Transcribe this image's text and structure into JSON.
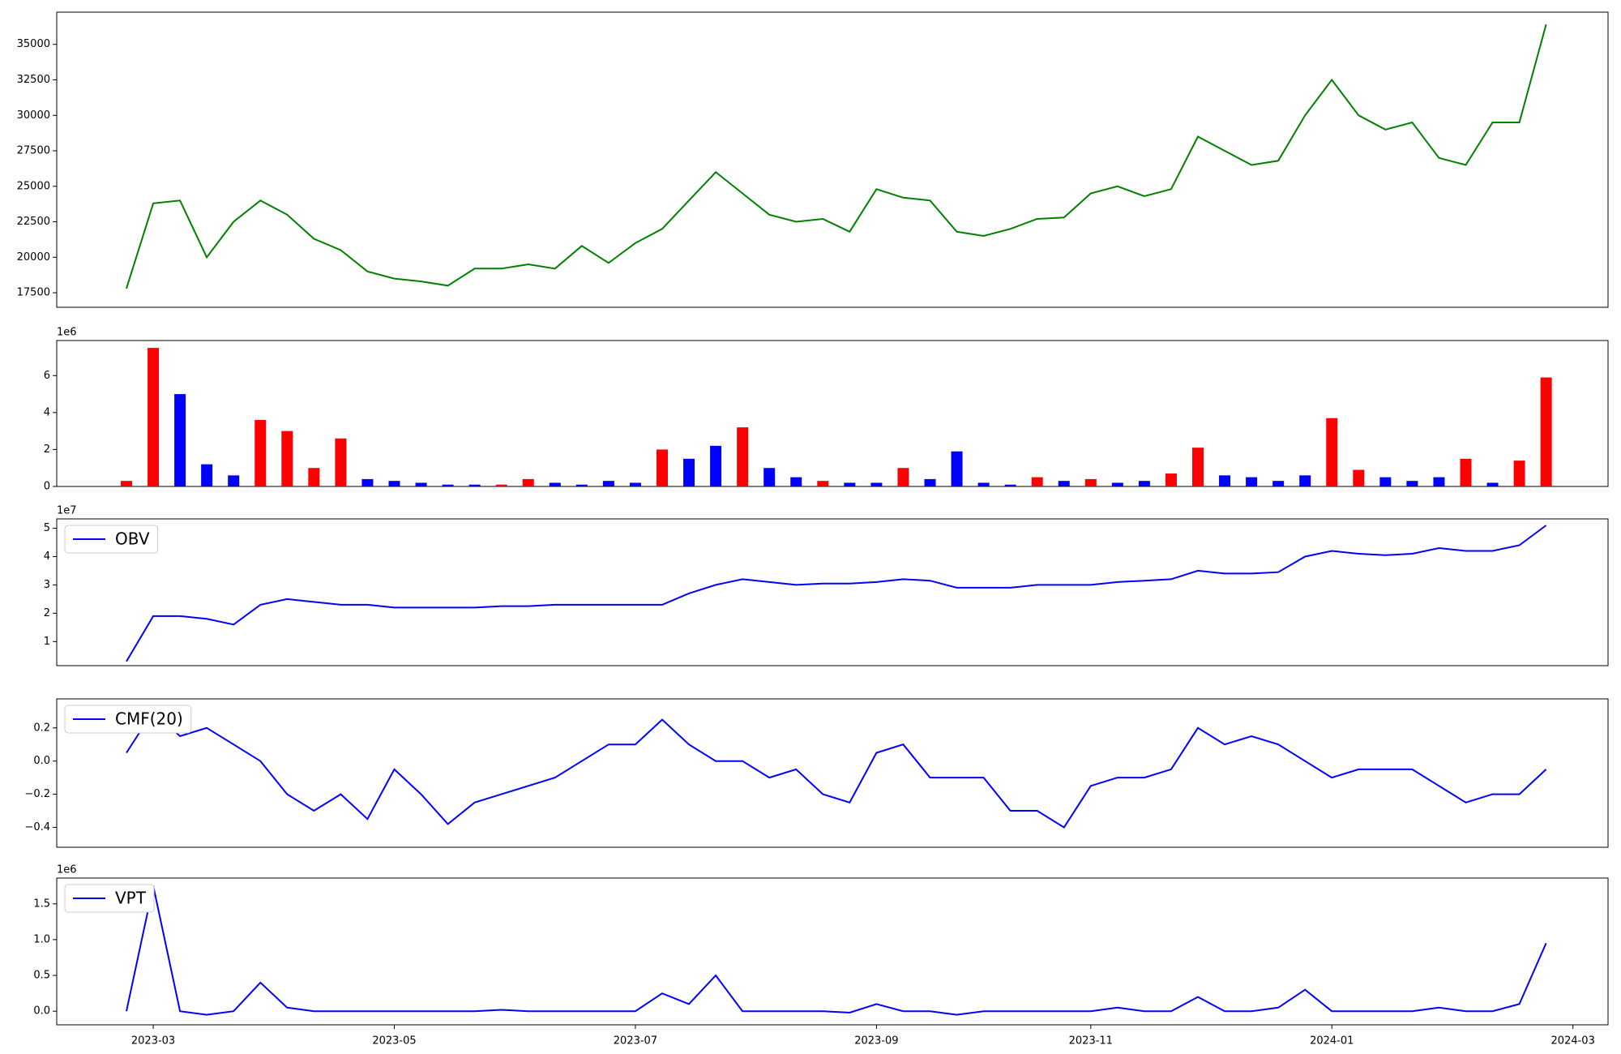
{
  "chart_data": [
    {
      "type": "line",
      "color": "#008000",
      "values": [
        17800,
        23800,
        24000,
        20000,
        22500,
        24000,
        23000,
        21300,
        20500,
        19000,
        18500,
        18300,
        18000,
        19200,
        19200,
        19500,
        19200,
        20800,
        19600,
        21000,
        22000,
        24000,
        26000,
        24500,
        23000,
        22500,
        22700,
        21800,
        24800,
        24200,
        24000,
        21800,
        21500,
        22000,
        22700,
        22800,
        24500,
        25000,
        24300,
        24800,
        28500,
        27500,
        26500,
        26800,
        30000,
        32500,
        30000,
        29000,
        29500,
        27000,
        26500,
        29500,
        29500,
        36400,
        null
      ],
      "ylim": [
        16475,
        37270
      ],
      "yticks": [
        17500,
        20000,
        22500,
        25000,
        27500,
        30000,
        32500,
        35000
      ]
    },
    {
      "type": "bar",
      "y_offset": "1e6",
      "values": [
        0.3,
        7.5,
        5.0,
        1.2,
        0.6,
        3.6,
        3.0,
        1.0,
        2.6,
        0.4,
        0.3,
        0.2,
        0.1,
        0.1,
        0.1,
        0.4,
        0.2,
        0.1,
        0.3,
        0.2,
        2.0,
        1.5,
        2.2,
        3.2,
        1.0,
        0.5,
        0.3,
        0.2,
        0.2,
        1.0,
        0.4,
        1.9,
        0.2,
        0.1,
        0.5,
        0.3,
        0.4,
        0.2,
        0.3,
        0.7,
        2.1,
        0.6,
        0.5,
        0.3,
        0.6,
        3.7,
        0.9,
        0.5,
        0.3,
        0.5,
        1.5,
        0.2,
        1.4,
        5.9,
        null
      ],
      "colors": [
        "#ff0000",
        "#ff0000",
        "#0000ff",
        "#0000ff",
        "#0000ff",
        "#ff0000",
        "#ff0000",
        "#ff0000",
        "#ff0000",
        "#0000ff",
        "#0000ff",
        "#0000ff",
        "#0000ff",
        "#0000ff",
        "#ff0000",
        "#ff0000",
        "#0000ff",
        "#0000ff",
        "#0000ff",
        "#0000ff",
        "#ff0000",
        "#0000ff",
        "#0000ff",
        "#ff0000",
        "#0000ff",
        "#0000ff",
        "#ff0000",
        "#0000ff",
        "#0000ff",
        "#ff0000",
        "#0000ff",
        "#0000ff",
        "#0000ff",
        "#0000ff",
        "#ff0000",
        "#0000ff",
        "#ff0000",
        "#0000ff",
        "#0000ff",
        "#ff0000",
        "#ff0000",
        "#0000ff",
        "#0000ff",
        "#0000ff",
        "#0000ff",
        "#ff0000",
        "#ff0000",
        "#0000ff",
        "#0000ff",
        "#0000ff",
        "#ff0000",
        "#0000ff",
        "#ff0000",
        "#ff0000",
        null
      ],
      "ylim": [
        0,
        7.9
      ],
      "yticks": [
        0,
        2,
        4,
        6
      ]
    },
    {
      "type": "line",
      "y_offset": "1e7",
      "legend": "upper left",
      "series": [
        {
          "name": "OBV",
          "color": "#0000ff",
          "values": [
            0.3,
            1.9,
            1.9,
            1.8,
            1.6,
            2.3,
            2.5,
            2.4,
            2.3,
            2.3,
            2.2,
            2.2,
            2.2,
            2.2,
            2.25,
            2.25,
            2.3,
            2.3,
            2.3,
            2.3,
            2.3,
            2.7,
            3.0,
            3.2,
            3.1,
            3.0,
            3.05,
            3.05,
            3.1,
            3.2,
            3.15,
            2.9,
            2.9,
            2.9,
            3.0,
            3.0,
            3.0,
            3.1,
            3.15,
            3.2,
            3.5,
            3.4,
            3.4,
            3.45,
            4.0,
            4.2,
            4.1,
            4.05,
            4.1,
            4.3,
            4.2,
            4.2,
            4.4,
            5.1,
            null
          ]
        }
      ],
      "ylim": [
        0.15,
        5.33
      ],
      "yticks": [
        1,
        2,
        3,
        4,
        5
      ]
    },
    {
      "type": "line",
      "legend": "upper left",
      "series": [
        {
          "name": "CMF(20)",
          "color": "#0000ff",
          "values": [
            0.05,
            0.3,
            0.15,
            0.2,
            0.1,
            0.0,
            -0.2,
            -0.3,
            -0.2,
            -0.35,
            -0.05,
            -0.2,
            -0.38,
            -0.25,
            -0.2,
            -0.15,
            -0.1,
            0.0,
            0.1,
            0.1,
            0.25,
            0.1,
            0.0,
            0.0,
            -0.1,
            -0.05,
            -0.2,
            -0.25,
            0.05,
            0.1,
            -0.1,
            -0.1,
            -0.1,
            -0.3,
            -0.3,
            -0.4,
            -0.15,
            -0.1,
            -0.1,
            -0.05,
            0.2,
            0.1,
            0.15,
            0.1,
            0.0,
            -0.1,
            -0.05,
            -0.05,
            -0.05,
            -0.15,
            -0.25,
            -0.2,
            -0.2,
            -0.05,
            null
          ]
        }
      ],
      "ylim": [
        -0.52,
        0.375
      ],
      "yticks": [
        {
          "value": -0.4,
          "label": "−0.4"
        },
        {
          "value": -0.2,
          "label": "−0.2"
        },
        {
          "value": 0,
          "label": "0.0"
        },
        {
          "value": 0.2,
          "label": "0.2"
        }
      ]
    },
    {
      "type": "line",
      "y_offset": "1e6",
      "legend": "upper left",
      "series": [
        {
          "name": "VPT",
          "color": "#0000ff",
          "values": [
            0.0,
            1.75,
            0.0,
            -0.05,
            0.0,
            0.4,
            0.05,
            0.0,
            0.0,
            0.0,
            0.0,
            0.0,
            0.0,
            0.0,
            0.02,
            0.0,
            0.0,
            0.0,
            0.0,
            0.0,
            0.25,
            0.1,
            0.5,
            0.0,
            0.0,
            0.0,
            0.0,
            -0.02,
            0.1,
            0.0,
            0.0,
            -0.05,
            0.0,
            0.0,
            0.0,
            0.0,
            0.0,
            0.05,
            0.0,
            0.0,
            0.2,
            0.0,
            0.0,
            0.05,
            0.3,
            0.0,
            0.0,
            0.0,
            0.0,
            0.05,
            0.0,
            0.0,
            0.1,
            0.95,
            null
          ]
        }
      ],
      "ylim": [
        -0.19,
        1.86
      ],
      "yticks": [
        {
          "value": 0,
          "label": "0.0"
        },
        {
          "value": 0.5,
          "label": "0.5"
        },
        {
          "value": 1,
          "label": "1.0"
        },
        {
          "value": 1.5,
          "label": "1.5"
        }
      ],
      "categories": [
        null,
        "2023-03",
        null,
        null,
        null,
        null,
        null,
        null,
        null,
        null,
        "2023-05",
        null,
        null,
        null,
        null,
        null,
        null,
        null,
        null,
        "2023-07",
        null,
        null,
        null,
        null,
        null,
        null,
        null,
        null,
        "2023-09",
        null,
        null,
        null,
        null,
        null,
        null,
        null,
        "2023-11",
        null,
        null,
        null,
        null,
        null,
        null,
        null,
        null,
        "2024-01",
        null,
        null,
        null,
        null,
        null,
        null,
        null,
        null,
        "2024-03"
      ]
    }
  ]
}
